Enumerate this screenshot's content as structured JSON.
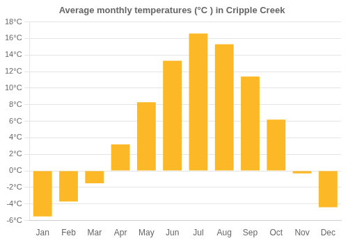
{
  "chart_data": {
    "type": "bar",
    "title": "Average monthly temperatures (°C ) in Cripple Creek",
    "categories": [
      "Jan",
      "Feb",
      "Mar",
      "Apr",
      "May",
      "Jun",
      "Jul",
      "Aug",
      "Sep",
      "Oct",
      "Nov",
      "Dec"
    ],
    "values": [
      -5.5,
      -3.7,
      -1.5,
      3.2,
      8.3,
      13.3,
      16.6,
      15.3,
      11.4,
      6.2,
      -0.3,
      -4.4
    ],
    "color": "#FDB827",
    "ylim": [
      -6,
      18
    ],
    "yticks": [
      {
        "value": -6,
        "label": "-6°C"
      },
      {
        "value": -4,
        "label": "-4°C"
      },
      {
        "value": -2,
        "label": "-2°C"
      },
      {
        "value": 0,
        "label": "0°C"
      },
      {
        "value": 2,
        "label": "2°C"
      },
      {
        "value": 4,
        "label": "4°C"
      },
      {
        "value": 6,
        "label": "6°C"
      },
      {
        "value": 8,
        "label": "8°C"
      },
      {
        "value": 10,
        "label": "10°C"
      },
      {
        "value": 12,
        "label": "12°C"
      },
      {
        "value": 14,
        "label": "14°C"
      },
      {
        "value": 16,
        "label": "16°C"
      },
      {
        "value": 18,
        "label": "18°C"
      }
    ],
    "grid": true
  }
}
